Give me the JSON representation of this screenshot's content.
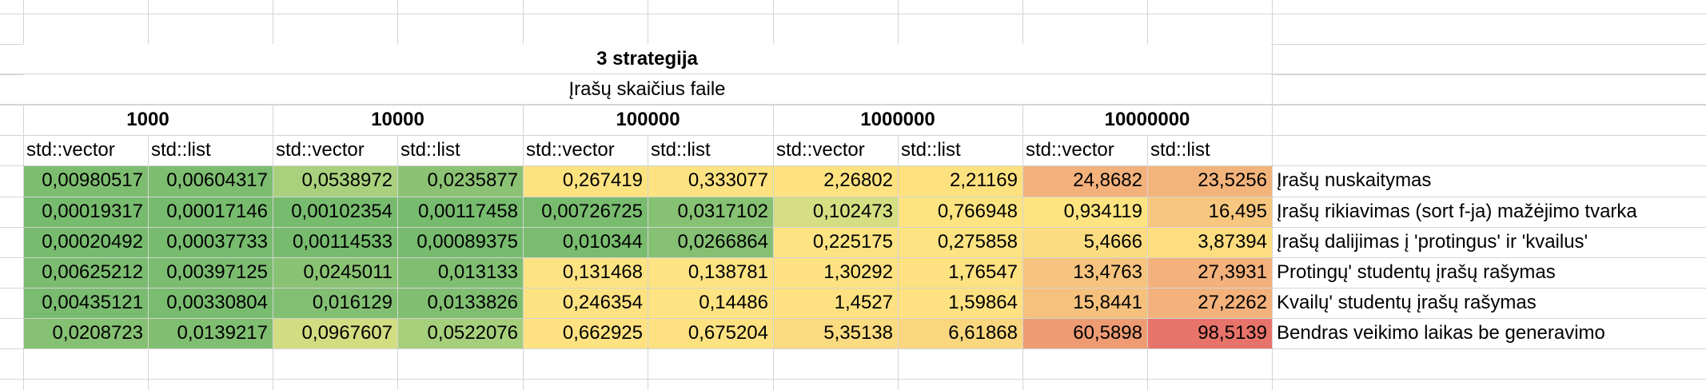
{
  "title": "3 strategija",
  "subtitle": "Įrašų skaičius faile",
  "sizes": [
    "1000",
    "10000",
    "100000",
    "1000000",
    "10000000"
  ],
  "container_headers": [
    "std::vector",
    "std::list",
    "std::vector",
    "std::list",
    "std::vector",
    "std::list",
    "std::vector",
    "std::list",
    "std::vector",
    "std::list"
  ],
  "rows": [
    {
      "label": "Įrašų nuskaitymas",
      "values": [
        "0,00980517",
        "0,00604317",
        "0,0538972",
        "0,0235877",
        "0,267419",
        "0,333077",
        "2,26802",
        "2,21169",
        "24,8682",
        "23,5256"
      ],
      "colors": [
        "#7dbd70",
        "#7dbd70",
        "#a9d17d",
        "#8cc274",
        "#fde280",
        "#fde281",
        "#fee280",
        "#fee17f",
        "#f3b17b",
        "#f3b47c"
      ]
    },
    {
      "label": "Įrašų rikiavimas (sort f-ja) mažėjimo tvarka",
      "values": [
        "0,00019317",
        "0,00017146",
        "0,00102354",
        "0,00117458",
        "0,00726725",
        "0,0317102",
        "0,102473",
        "0,766948",
        "0,934119",
        "16,495"
      ],
      "colors": [
        "#77bb6e",
        "#77bb6e",
        "#77bb6e",
        "#77bb6e",
        "#79bc6f",
        "#87c173",
        "#d5de83",
        "#fee481",
        "#fee481",
        "#f7c77f"
      ]
    },
    {
      "label": "Įrašų dalijimas į 'protingus' ir 'kvailus'",
      "values": [
        "0,00020492",
        "0,00037733",
        "0,00114533",
        "0,00089375",
        "0,010344",
        "0,0266864",
        "0,225175",
        "0,275858",
        "5,4666",
        "3,87394"
      ],
      "colors": [
        "#77bb6e",
        "#77bb6e",
        "#77bb6e",
        "#77bb6e",
        "#7abc6f",
        "#85c073",
        "#fde382",
        "#fde382",
        "#fbdc80",
        "#fddd80"
      ]
    },
    {
      "label": "Protingų' studentų įrašų rašymas",
      "values": [
        "0,00625212",
        "0,00397125",
        "0,0245011",
        "0,013133",
        "0,131468",
        "0,138781",
        "1,30292",
        "1,76547",
        "13,4763",
        "27,3931"
      ],
      "colors": [
        "#7bbc70",
        "#7bbc70",
        "#8ac273",
        "#80be71",
        "#fee382",
        "#fee382",
        "#fee281",
        "#fee180",
        "#f6c47e",
        "#f3b17b"
      ]
    },
    {
      "label": "Kvailų' studentų įrašų rašymas",
      "values": [
        "0,00435121",
        "0,00330804",
        "0,016129",
        "0,0133826",
        "0,246354",
        "0,14486",
        "1,4527",
        "1,59864",
        "15,8441",
        "27,2262"
      ],
      "colors": [
        "#79bc6f",
        "#79bc6f",
        "#82bf72",
        "#80be71",
        "#fde281",
        "#fee382",
        "#fee281",
        "#fee180",
        "#f5c17d",
        "#f3b17b"
      ]
    },
    {
      "label": "Bendras veikimo laikas be generavimo",
      "values": [
        "0,0208723",
        "0,0139217",
        "0,0967607",
        "0,0522076",
        "0,662925",
        "0,675204",
        "5,35138",
        "6,61868",
        "60,5898",
        "98,5139"
      ],
      "colors": [
        "#86c073",
        "#80be71",
        "#d2dd82",
        "#a6cf7b",
        "#fee281",
        "#fee281",
        "#fbdb80",
        "#fad77f",
        "#ee9b74",
        "#e8736b"
      ]
    }
  ]
}
